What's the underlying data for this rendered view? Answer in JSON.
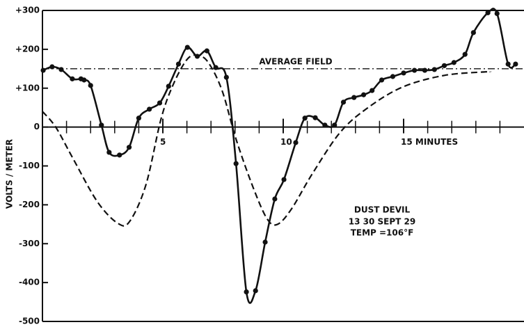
{
  "chart_data": {
    "type": "line",
    "ylabel": "VOLTS / METER",
    "xlim": [
      0,
      20
    ],
    "ylim": [
      -500,
      300
    ],
    "yticks": [
      {
        "value": 300,
        "label": "+300"
      },
      {
        "value": 200,
        "label": "+200"
      },
      {
        "value": 100,
        "label": "+100"
      },
      0,
      -100,
      -200,
      -300,
      -400,
      -500
    ],
    "xticks": [
      5,
      10,
      {
        "value": 15,
        "label": "15 MINUTES"
      }
    ],
    "xminorticks": [
      1,
      2,
      3,
      4,
      6,
      7,
      8,
      9,
      11,
      12,
      13,
      14,
      16,
      17,
      18,
      19
    ],
    "reference_line": {
      "value": 150,
      "label": "AVERAGE FIELD"
    },
    "annotation": [
      "DUST DEVIL",
      "13 30 SEPT 29",
      "TEMP =106°F"
    ],
    "series": [
      {
        "color": "#111111",
        "style": "solid",
        "markers": true,
        "x": [
          0.03,
          0.4,
          0.78,
          1.24,
          1.6,
          1.73,
          2.0,
          2.45,
          2.77,
          3.2,
          3.6,
          4.0,
          4.44,
          4.87,
          5.24,
          5.65,
          6.02,
          6.43,
          6.83,
          7.2,
          7.64,
          8.04,
          8.47,
          8.85,
          9.25,
          9.65,
          10.03,
          10.52,
          10.9,
          11.33,
          11.73,
          12.13,
          12.5,
          12.94,
          13.34,
          13.69,
          14.09,
          14.55,
          15.0,
          15.45,
          15.88,
          16.28,
          16.69,
          17.09,
          17.55,
          17.9,
          18.5,
          18.88,
          19.34,
          19.65
        ],
        "values": [
          146,
          155,
          148,
          124,
          124,
          121,
          107,
          5,
          -65,
          -72,
          -52,
          23,
          46,
          62,
          105,
          162,
          205,
          182,
          196,
          153,
          128,
          -94,
          -424,
          -421,
          -296,
          -185,
          -135,
          -40,
          23,
          24,
          5,
          5,
          64,
          76,
          83,
          94,
          121,
          130,
          139,
          146,
          146,
          148,
          158,
          166,
          187,
          243,
          294,
          292,
          162,
          162
        ]
      },
      {
        "color": "#111111",
        "style": "dashed",
        "markers": false,
        "x": [
          0,
          0.55,
          1.27,
          2.28,
          3.14,
          3.63,
          4.3,
          4.93,
          5.45,
          6.02,
          6.46,
          6.89,
          7.46,
          8.04,
          8.76,
          9.34,
          9.77,
          10.35,
          11.2,
          12.36,
          13.5,
          14.96,
          16.7,
          18.4,
          18.6
        ],
        "values": [
          40,
          0,
          -81,
          -192,
          -248,
          -242,
          -148,
          22,
          112,
          175,
          184,
          166,
          94,
          -31,
          -157,
          -237,
          -250,
          -210,
          -121,
          -14,
          49,
          103,
          133,
          142,
          142
        ]
      }
    ]
  }
}
